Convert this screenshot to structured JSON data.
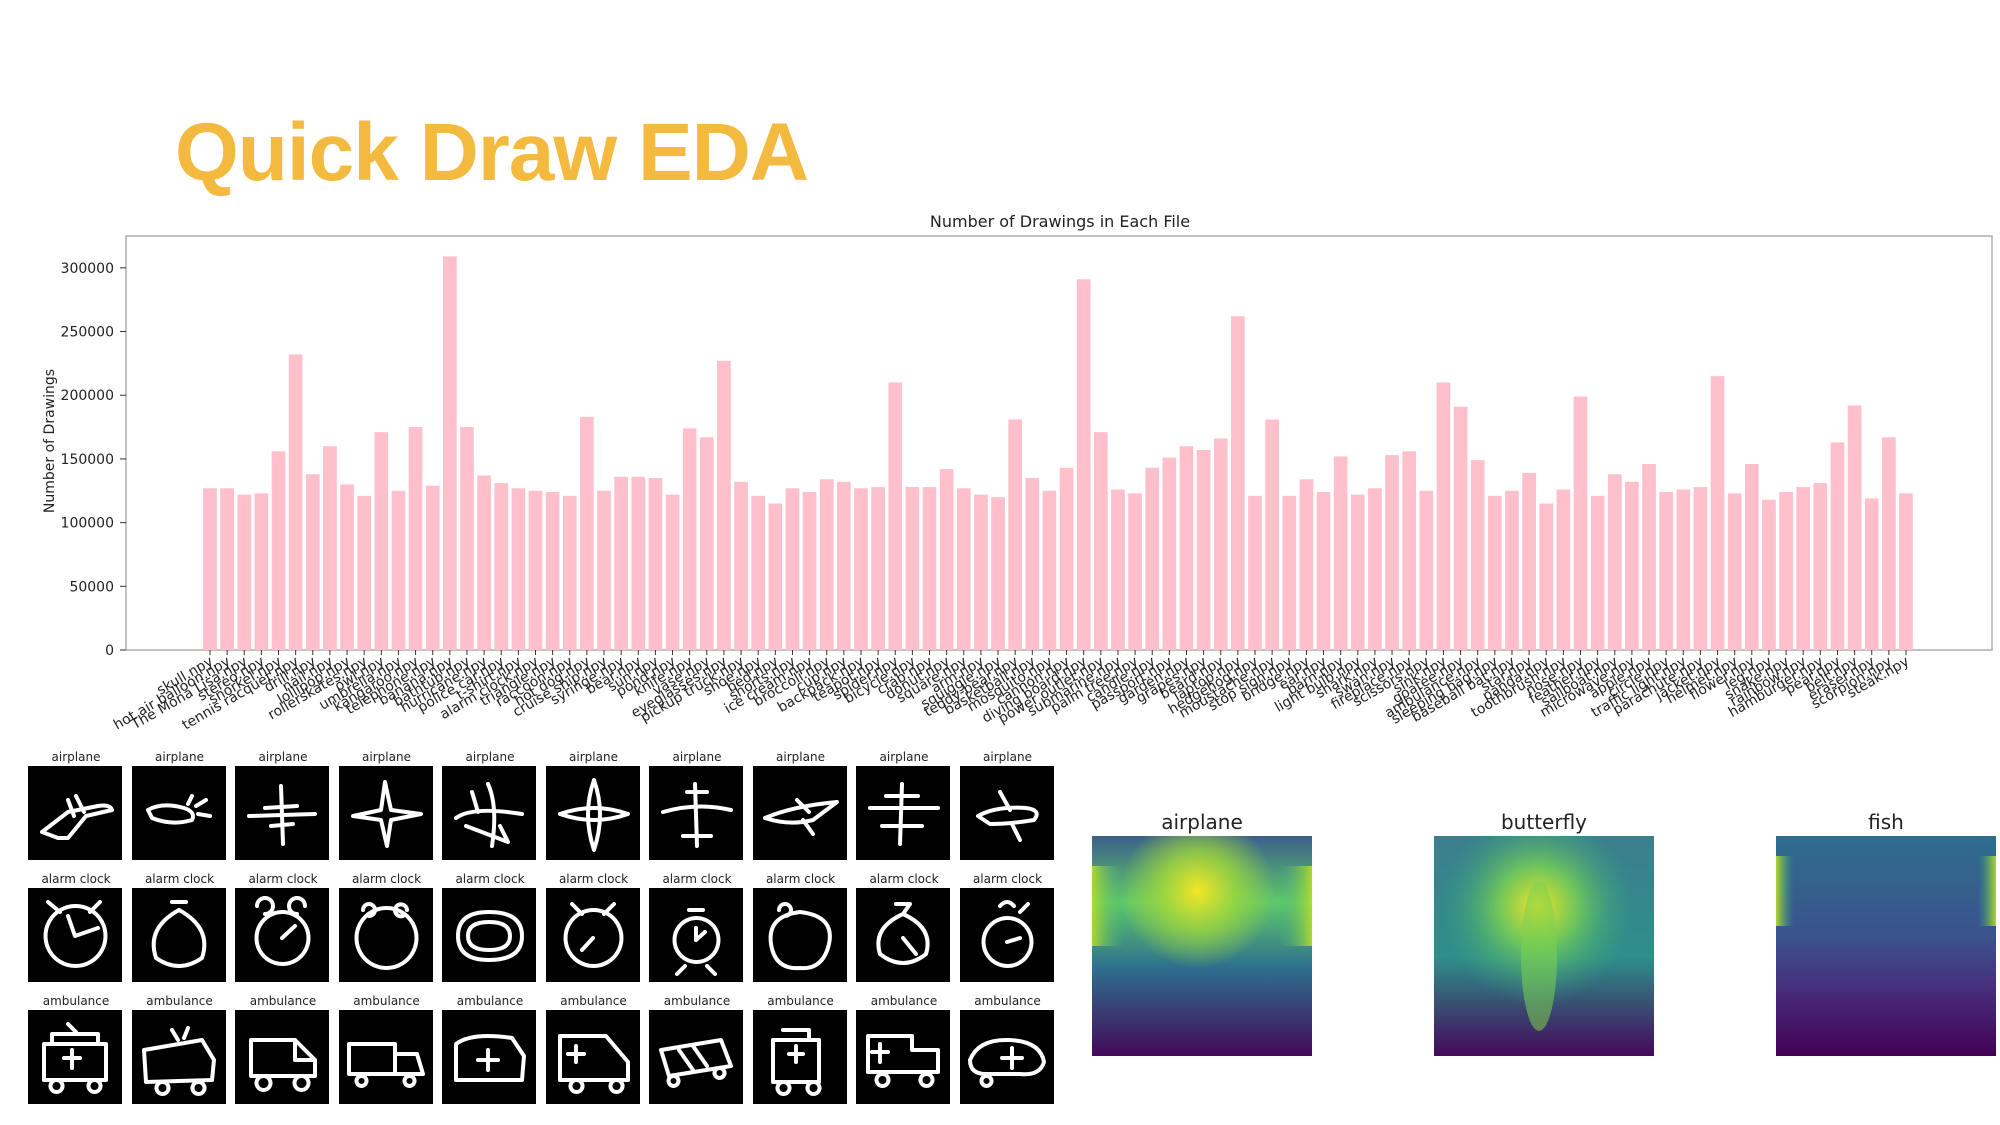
{
  "slide": {
    "title": "Quick Draw EDA"
  },
  "chart_data": {
    "type": "bar",
    "title": "Number of Drawings in Each File",
    "ylabel": "Number of Drawings",
    "xlabel": "",
    "ylim": [
      0,
      325000
    ],
    "yticks": [
      0,
      50000,
      100000,
      150000,
      200000,
      250000,
      300000
    ],
    "bar_color": "#ffc0cb",
    "categories": [
      "skull.npy",
      "hot air balloon.npy",
      "The Mona Lisa.npy",
      "stereo.npy",
      "snorkel.npy",
      "tennis racquet.npy",
      "drill.npy",
      "nail.npy",
      "lollipop.npy",
      "rollerskates.npy",
      "owl.npy",
      "umbrella.npy",
      "kangaroo.npy",
      "telephone.npy",
      "banana.npy",
      "bathtub.npy",
      "hurricane.npy",
      "police car.npy",
      "t-shirt.npy",
      "alarm clock.npy",
      "triangle.npy",
      "raccoon.npy",
      "hot dog.npy",
      "cruise ship.npy",
      "syringe.npy",
      "bear.npy",
      "sun.npy",
      "pond.npy",
      "knife.npy",
      "vase.npy",
      "eyeglasses.npy",
      "pickup truck.npy",
      "shoe.npy",
      "bed.npy",
      "shorts.npy",
      "ice cream.npy",
      "broccoli.npy",
      "cup.npy",
      "backpack.npy",
      "teapot.npy",
      "spider.npy",
      "bicycle.npy",
      "crab.npy",
      "donut.npy",
      "square.npy",
      "arm.npy",
      "squiggle.npy",
      "teddy-bear.npy",
      "basketball.npy",
      "mosquito.npy",
      "cannon.npy",
      "diving board.npy",
      "power outlet.npy",
      "submarine.npy",
      "palm tree.npy",
      "candle.npy",
      "passport.npy",
      "garden.npy",
      "grapes.npy",
      "beard.npy",
      "laptop.npy",
      "hedgehog.npy",
      "moustache.npy",
      "stop sign.npy",
      "bridge.npy",
      "ear.npy",
      "barn.npy",
      "light bulb.npy",
      "shark.npy",
      "swan.npy",
      "fireplace.npy",
      "scissors.npy",
      "sink.npy",
      "goatee.npy",
      "ambulance.npy",
      "sleeping bag.npy",
      "baseball bat.npy",
      "star.npy",
      "panda.npy",
      "toothbrush.npy",
      "nose.npy",
      "feather.npy",
      "sailboat.npy",
      "microwave.npy",
      "apple.npy",
      "circle.npy",
      "traffic light.npy",
      "parachute.npy",
      "jacket.npy",
      "helmet.npy",
      "flower.npy",
      "leg.npy",
      "snake.npy",
      "rainbow.npy",
      "hamburger.npy",
      "pear.npy",
      "belt.npy",
      "eraser.npy",
      "scorpion.npy",
      "steak.npy"
    ],
    "values": [
      127000,
      127000,
      122000,
      123000,
      156000,
      232000,
      138000,
      160000,
      130000,
      121000,
      171000,
      125000,
      175000,
      129000,
      309000,
      175000,
      137000,
      131000,
      127000,
      125000,
      124000,
      121000,
      183000,
      125000,
      136000,
      136000,
      135000,
      122000,
      174000,
      167000,
      227000,
      132000,
      121000,
      115000,
      127000,
      124000,
      134000,
      132000,
      127000,
      128000,
      210000,
      128000,
      128000,
      142000,
      127000,
      122000,
      120000,
      181000,
      135000,
      125000,
      143000,
      291000,
      171000,
      126000,
      123000,
      143000,
      151000,
      160000,
      157000,
      166000,
      262000,
      121000,
      181000,
      121000,
      134000,
      124000,
      152000,
      122000,
      127000,
      153000,
      156000,
      125000,
      210000,
      191000,
      149000,
      121000,
      125000,
      139000,
      115000,
      126000,
      199000,
      121000,
      138000,
      132000,
      146000,
      124000,
      126000,
      128000,
      215000,
      123000,
      146000,
      118000,
      124000,
      128000,
      131000,
      163000,
      192000,
      119000,
      167000,
      123000
    ]
  },
  "samples": {
    "rows": [
      {
        "label": "airplane",
        "count": 10
      },
      {
        "label": "alarm clock",
        "count": 10
      },
      {
        "label": "ambulance",
        "count": 10
      }
    ]
  },
  "heatmaps": [
    {
      "label": "airplane"
    },
    {
      "label": "butterfly"
    },
    {
      "label": "fish"
    }
  ]
}
